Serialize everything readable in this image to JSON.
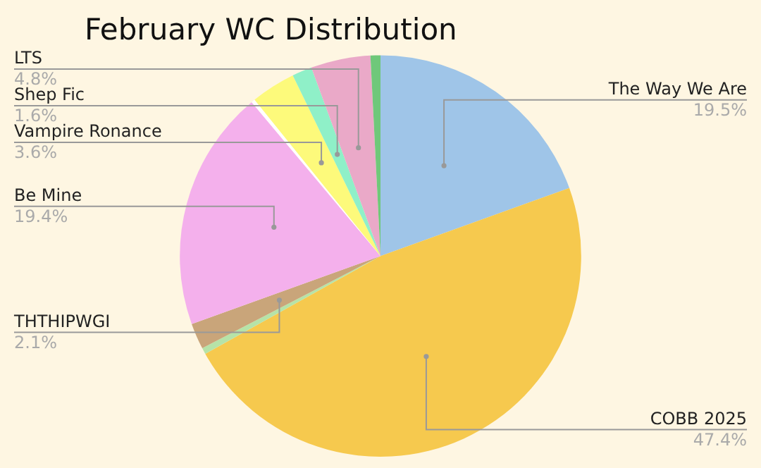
{
  "chart_data": {
    "type": "pie",
    "title": "February WC Distribution",
    "categories": [
      "The Way We Are",
      "COBB 2025",
      null,
      "THTHIPWGI",
      "Be Mine",
      null,
      "Vampire Ronance",
      "Shep Fic",
      "LTS",
      null
    ],
    "values": [
      19.5,
      47.4,
      0.5,
      2.1,
      19.4,
      0.3,
      3.6,
      1.6,
      4.8,
      0.8
    ],
    "value_labels": [
      "19.5%",
      "47.4%",
      null,
      "2.1%",
      "19.4%",
      null,
      "3.6%",
      "1.6%",
      "4.8%",
      null
    ],
    "colors": [
      "#9fc5e8",
      "#f6c94e",
      "#b6e3a8",
      "#c9a57a",
      "#f4b0ec",
      "#ffffff",
      "#fdfa7b",
      "#8ff0c8",
      "#eaa9c8",
      "#6fc87a"
    ],
    "legend": false
  }
}
